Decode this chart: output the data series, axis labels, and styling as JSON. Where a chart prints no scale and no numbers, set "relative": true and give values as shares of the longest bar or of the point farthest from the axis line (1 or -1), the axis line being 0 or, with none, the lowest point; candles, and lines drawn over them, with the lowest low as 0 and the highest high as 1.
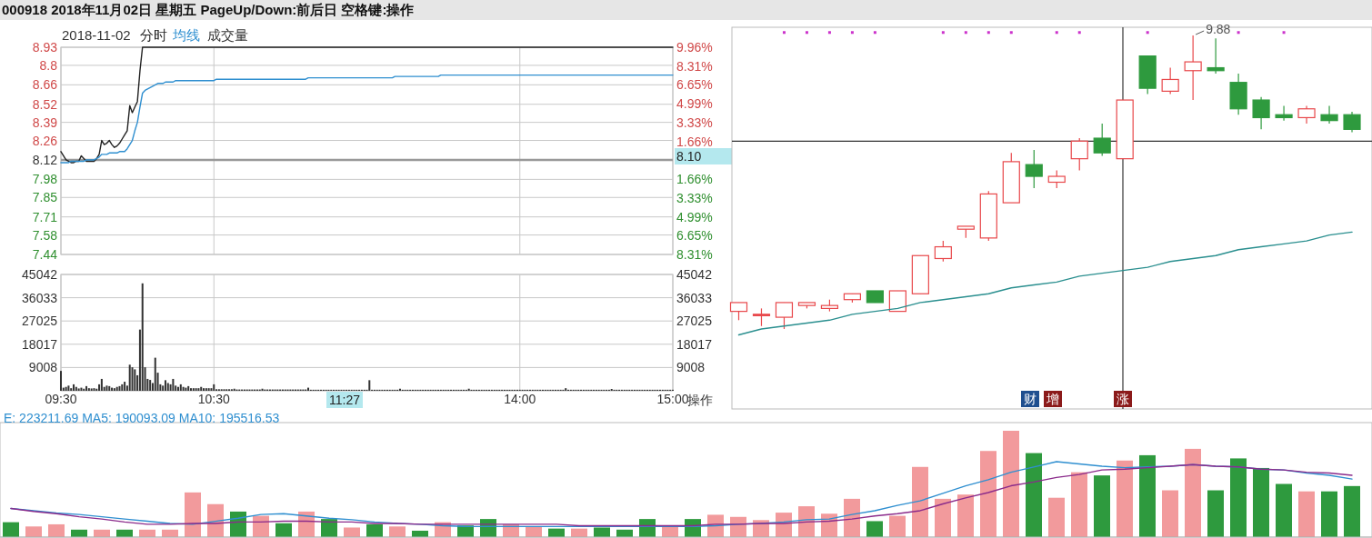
{
  "chart_data": [
    {
      "type": "line",
      "title": "000918 2018年11月02日 星期五 PageUp/Down:前后日 空格键:操作",
      "subtitle": "2018-11-02",
      "legend": "top left",
      "grid": true,
      "tick_labels": "y",
      "categories": [
        null,
        null,
        null,
        null,
        null,
        null,
        null,
        null,
        null,
        null,
        null,
        null,
        null,
        null,
        null,
        null,
        null,
        null,
        null,
        null,
        null,
        null,
        null,
        null,
        null,
        null,
        null,
        null,
        null,
        null,
        null,
        null,
        null,
        null,
        null,
        null,
        null,
        null,
        null,
        null,
        null,
        null,
        null,
        null,
        null,
        null,
        null,
        null,
        null,
        null,
        null,
        null,
        null,
        null,
        null,
        null,
        null,
        null,
        null,
        null,
        null,
        null,
        null,
        null,
        null,
        null,
        null,
        null,
        null,
        null,
        null,
        null,
        null,
        null,
        null,
        null,
        null,
        null,
        null,
        null,
        null,
        null,
        null,
        null,
        null,
        null,
        null,
        null,
        null,
        null,
        null,
        null,
        null,
        null,
        null,
        null,
        null,
        null,
        null,
        null,
        null,
        null,
        null,
        null,
        null,
        null,
        null,
        null,
        null,
        null,
        null,
        null,
        null,
        null,
        null,
        null,
        null,
        null,
        null,
        null,
        null,
        null,
        null,
        null,
        null,
        null,
        null,
        null,
        null,
        null,
        null,
        null,
        null,
        null,
        null,
        null,
        null,
        null,
        null,
        null,
        null,
        null,
        null,
        null,
        null,
        null,
        null,
        null,
        null,
        null,
        null,
        null,
        null,
        null,
        null,
        null,
        null,
        null,
        null,
        null,
        null,
        null,
        null,
        null,
        null,
        null,
        null,
        null,
        null,
        null,
        null,
        null,
        null,
        null,
        null,
        null,
        null,
        null,
        null,
        null,
        null,
        null,
        null,
        null,
        null,
        null,
        null,
        null,
        null,
        null,
        null,
        null,
        null,
        null,
        null,
        null,
        null,
        null,
        null,
        null,
        null,
        null,
        null,
        null,
        null,
        null,
        null,
        null,
        null,
        null,
        null,
        null,
        null,
        null,
        null,
        null,
        null,
        null,
        null,
        null,
        null,
        null,
        null,
        null,
        null,
        null,
        null,
        null,
        null,
        null,
        null,
        null,
        null,
        null,
        null,
        null,
        null,
        null,
        null,
        null,
        null
      ],
      "ylim": [
        7.44,
        8.93
      ],
      "yticks": [
        8.93,
        8.8,
        8.66,
        8.52,
        8.39,
        8.26,
        8.12,
        7.98,
        7.85,
        7.71,
        7.58,
        7.44
      ],
      "y2lim": [
        -8.31,
        9.96
      ],
      "y2ticks": [
        {
          "value": 9.96,
          "label": "9.96%"
        },
        {
          "value": 8.31,
          "label": "8.31%"
        },
        {
          "value": 6.65,
          "label": "6.65%"
        },
        {
          "value": 4.99,
          "label": "4.99%"
        },
        {
          "value": 3.33,
          "label": "3.33%"
        },
        {
          "value": 1.66,
          "label": "1.66%"
        },
        {
          "value": -1.66,
          "label": "1.66%"
        },
        {
          "value": -3.33,
          "label": "3.33%"
        },
        {
          "value": -4.99,
          "label": "4.99%"
        },
        {
          "value": -6.65,
          "label": "6.65%"
        },
        {
          "value": -8.31,
          "label": "8.31%"
        }
      ],
      "ref_lines": [
        {
          "axis": "y",
          "value": 8.12,
          "color": "#999999"
        }
      ],
      "annotations": [
        "8.10",
        "成交量"
      ],
      "series": [
        {
          "name": "分时",
          "color": "#222222",
          "values": [
            8.18,
            8.15,
            8.12,
            8.11,
            8.1,
            8.1,
            8.11,
            8.11,
            8.15,
            8.13,
            8.11,
            8.11,
            8.11,
            8.11,
            8.13,
            8.16,
            8.26,
            8.23,
            8.24,
            8.26,
            8.23,
            8.21,
            8.22,
            8.24,
            8.27,
            8.3,
            8.33,
            8.51,
            8.46,
            8.5,
            8.54,
            8.76,
            8.93,
            8.93,
            8.93,
            8.93,
            8.93,
            8.93,
            8.93,
            8.93,
            8.93,
            8.93,
            8.93,
            8.93,
            8.93,
            8.93,
            8.93,
            8.93,
            8.93,
            8.93,
            8.93,
            8.93,
            8.93,
            8.93,
            8.93,
            8.93,
            8.93,
            8.93,
            8.93,
            8.93,
            8.93,
            8.93,
            8.93,
            8.93,
            8.93,
            8.93,
            8.93,
            8.93,
            8.93,
            8.93,
            8.93,
            8.93,
            8.93,
            8.93,
            8.93,
            8.93,
            8.93,
            8.93,
            8.93,
            8.93,
            8.93,
            8.93,
            8.93,
            8.93,
            8.93,
            8.93,
            8.93,
            8.93,
            8.93,
            8.93,
            8.93,
            8.93,
            8.93,
            8.93,
            8.93,
            8.93,
            8.93,
            8.93,
            8.93,
            8.93,
            8.93,
            8.93,
            8.93,
            8.93,
            8.93,
            8.93,
            8.93,
            8.93,
            8.93,
            8.93,
            8.93,
            8.93,
            8.93,
            8.93,
            8.93,
            8.93,
            8.93,
            8.93,
            8.93,
            8.93,
            8.93,
            8.93,
            8.93,
            8.93,
            8.93,
            8.93,
            8.93,
            8.93,
            8.93,
            8.93,
            8.93,
            8.93,
            8.93,
            8.93,
            8.93,
            8.93,
            8.93,
            8.93,
            8.93,
            8.93,
            8.93,
            8.93,
            8.93,
            8.93,
            8.93,
            8.93,
            8.93,
            8.93,
            8.93,
            8.93,
            8.93,
            8.93,
            8.93,
            8.93,
            8.93,
            8.93,
            8.93,
            8.93,
            8.93,
            8.93,
            8.93,
            8.93,
            8.93,
            8.93,
            8.93,
            8.93,
            8.93,
            8.93,
            8.93,
            8.93,
            8.93,
            8.93,
            8.93,
            8.93,
            8.93,
            8.93,
            8.93,
            8.93,
            8.93,
            8.93,
            8.93,
            8.93,
            8.93,
            8.93,
            8.93,
            8.93,
            8.93,
            8.93,
            8.93,
            8.93,
            8.93,
            8.93,
            8.93,
            8.93,
            8.93,
            8.93,
            8.93,
            8.93,
            8.93,
            8.93,
            8.93,
            8.93,
            8.93,
            8.93,
            8.93,
            8.93,
            8.93,
            8.93,
            8.93,
            8.93,
            8.93,
            8.93,
            8.93,
            8.93,
            8.93,
            8.93,
            8.93,
            8.93,
            8.93,
            8.93,
            8.93,
            8.93,
            8.93,
            8.93,
            8.93,
            8.93,
            8.93,
            8.93,
            8.93,
            8.93,
            8.93,
            8.93,
            8.93,
            8.93,
            8.93,
            8.93,
            8.93,
            8.93,
            8.93,
            8.93,
            8.93
          ]
        },
        {
          "name": "均线",
          "color": "#2f8fd0",
          "values": [
            8.1,
            8.1,
            8.1,
            8.1,
            8.11,
            8.11,
            8.11,
            8.11,
            8.11,
            8.11,
            8.12,
            8.12,
            8.12,
            8.12,
            8.13,
            8.14,
            8.16,
            8.16,
            8.16,
            8.17,
            8.17,
            8.17,
            8.17,
            8.18,
            8.18,
            8.18,
            8.2,
            8.23,
            8.26,
            8.33,
            8.39,
            8.5,
            8.6,
            8.62,
            8.63,
            8.64,
            8.65,
            8.66,
            8.67,
            8.67,
            8.67,
            8.68,
            8.68,
            8.68,
            8.68,
            8.69,
            8.69,
            8.69,
            8.69,
            8.69,
            8.69,
            8.69,
            8.69,
            8.69,
            8.69,
            8.69,
            8.69,
            8.69,
            8.69,
            8.69,
            8.69,
            8.7,
            8.7,
            8.7,
            8.7,
            8.7,
            8.7,
            8.7,
            8.7,
            8.7,
            8.7,
            8.7,
            8.7,
            8.7,
            8.7,
            8.7,
            8.7,
            8.7,
            8.7,
            8.7,
            8.7,
            8.7,
            8.7,
            8.7,
            8.7,
            8.7,
            8.7,
            8.7,
            8.7,
            8.7,
            8.7,
            8.7,
            8.7,
            8.7,
            8.7,
            8.7,
            8.7,
            8.71,
            8.71,
            8.71,
            8.71,
            8.71,
            8.71,
            8.71,
            8.71,
            8.71,
            8.71,
            8.71,
            8.71,
            8.71,
            8.71,
            8.71,
            8.71,
            8.71,
            8.71,
            8.71,
            8.71,
            8.71,
            8.71,
            8.71,
            8.71,
            8.71,
            8.71,
            8.71,
            8.71,
            8.71,
            8.71,
            8.71,
            8.71,
            8.71,
            8.71,
            8.72,
            8.72,
            8.72,
            8.72,
            8.72,
            8.72,
            8.72,
            8.72,
            8.72,
            8.72,
            8.72,
            8.72,
            8.72,
            8.72,
            8.72,
            8.72,
            8.72,
            8.72,
            8.73,
            8.73,
            8.73,
            8.73,
            8.73,
            8.73,
            8.73,
            8.73,
            8.73,
            8.73,
            8.73,
            8.73,
            8.73,
            8.73,
            8.73,
            8.73,
            8.73,
            8.73,
            8.73,
            8.73,
            8.73,
            8.73,
            8.73,
            8.73,
            8.73,
            8.73,
            8.73,
            8.73,
            8.73,
            8.73,
            8.73,
            8.73,
            8.73,
            8.73,
            8.73,
            8.73,
            8.73,
            8.73,
            8.73,
            8.73,
            8.73,
            8.73,
            8.73,
            8.73,
            8.73,
            8.73,
            8.73,
            8.73,
            8.73,
            8.73,
            8.73,
            8.73,
            8.73,
            8.73,
            8.73,
            8.73,
            8.73,
            8.73,
            8.73,
            8.73,
            8.73,
            8.73,
            8.73,
            8.73,
            8.73,
            8.73,
            8.73,
            8.73,
            8.73,
            8.73,
            8.73,
            8.73,
            8.73,
            8.73,
            8.73,
            8.73,
            8.73,
            8.73,
            8.73,
            8.73,
            8.73,
            8.73,
            8.73,
            8.73,
            8.73,
            8.73,
            8.73,
            8.73,
            8.73,
            8.73,
            8.73,
            8.73
          ]
        }
      ]
    },
    {
      "type": "bar",
      "color": "#333333",
      "grid": true,
      "categories": [
        "09:30",
        null,
        null,
        null,
        null,
        null,
        null,
        null,
        null,
        null,
        null,
        null,
        null,
        null,
        null,
        null,
        null,
        null,
        null,
        null,
        null,
        null,
        null,
        null,
        null,
        null,
        null,
        null,
        null,
        null,
        null,
        null,
        null,
        null,
        null,
        null,
        null,
        null,
        null,
        null,
        null,
        null,
        null,
        null,
        null,
        null,
        null,
        null,
        null,
        null,
        null,
        null,
        null,
        null,
        null,
        null,
        null,
        null,
        null,
        null,
        "10:30",
        null,
        null,
        null,
        null,
        null,
        null,
        null,
        null,
        null,
        null,
        null,
        null,
        null,
        null,
        null,
        null,
        null,
        null,
        null,
        null,
        null,
        null,
        null,
        null,
        null,
        null,
        null,
        null,
        null,
        null,
        null,
        null,
        null,
        null,
        null,
        null,
        null,
        null,
        null,
        null,
        null,
        null,
        null,
        null,
        null,
        null,
        null,
        null,
        null,
        null,
        null,
        null,
        null,
        null,
        null,
        null,
        null,
        null,
        null,
        null,
        null,
        null,
        null,
        null,
        null,
        null,
        null,
        null,
        null,
        null,
        null,
        null,
        null,
        null,
        null,
        null,
        null,
        null,
        null,
        null,
        null,
        null,
        null,
        null,
        null,
        null,
        null,
        null,
        null,
        null,
        null,
        null,
        null,
        null,
        null,
        null,
        null,
        null,
        null,
        null,
        null,
        null,
        null,
        null,
        null,
        null,
        null,
        null,
        null,
        null,
        null,
        null,
        null,
        null,
        null,
        null,
        null,
        null,
        null,
        "14:00",
        null,
        null,
        null,
        null,
        null,
        null,
        null,
        null,
        null,
        null,
        null,
        null,
        null,
        null,
        null,
        null,
        null,
        null,
        null,
        null,
        null,
        null,
        null,
        null,
        null,
        null,
        null,
        null,
        null,
        null,
        null,
        null,
        null,
        null,
        null,
        null,
        null,
        null,
        null,
        null,
        null,
        null,
        null,
        null,
        null,
        null,
        null,
        null,
        null,
        null,
        null,
        null,
        null,
        null,
        null,
        null,
        null,
        null,
        null,
        "15:00"
      ],
      "ylim": [
        0,
        45042
      ],
      "yticks": [
        9008,
        18017,
        27025,
        36033,
        45042
      ],
      "y2lim": [
        0,
        45042
      ],
      "y2ticks": [
        9008,
        18017,
        27025,
        36033,
        45042
      ],
      "values": [
        7700,
        1200,
        1500,
        2000,
        1000,
        2500,
        1500,
        900,
        1200,
        800,
        1800,
        1000,
        900,
        1000,
        800,
        2500,
        4600,
        1500,
        2000,
        1800,
        1200,
        1000,
        1500,
        1800,
        2500,
        3500,
        2000,
        10100,
        9100,
        8300,
        6000,
        23700,
        41600,
        9100,
        4600,
        4200,
        3000,
        12800,
        7000,
        2500,
        2000,
        4100,
        3000,
        2500,
        4600,
        2000,
        1500,
        2500,
        1500,
        1200,
        1800,
        1000,
        1000,
        1000,
        1000,
        1500,
        1000,
        1000,
        1000,
        1000,
        2500,
        600,
        600,
        600,
        600,
        600,
        600,
        600,
        800,
        500,
        500,
        500,
        500,
        500,
        500,
        500,
        500,
        500,
        500,
        800,
        500,
        500,
        500,
        500,
        500,
        500,
        500,
        500,
        500,
        500,
        500,
        500,
        500,
        500,
        500,
        500,
        500,
        1200,
        400,
        400,
        400,
        400,
        400,
        400,
        400,
        400,
        400,
        400,
        400,
        400,
        400,
        400,
        400,
        400,
        400,
        400,
        400,
        400,
        400,
        400,
        400,
        4100,
        400,
        400,
        400,
        400,
        400,
        400,
        400,
        400,
        400,
        400,
        400,
        800,
        400,
        400,
        400,
        400,
        400,
        400,
        400,
        400,
        400,
        400,
        400,
        400,
        400,
        400,
        400,
        400,
        400,
        400,
        400,
        400,
        400,
        400,
        400,
        400,
        400,
        400,
        800,
        400,
        400,
        400,
        400,
        400,
        400,
        400,
        400,
        400,
        400,
        400,
        400,
        400,
        400,
        400,
        400,
        400,
        400,
        400,
        400,
        400,
        400,
        400,
        400,
        400,
        400,
        400,
        400,
        400,
        400,
        400,
        400,
        400,
        400,
        400,
        400,
        400,
        1000,
        400,
        400,
        400,
        400,
        400,
        400,
        400,
        400,
        400,
        400,
        400,
        400,
        400,
        400,
        400,
        400,
        400,
        700,
        400,
        400,
        400,
        400,
        400,
        400,
        400,
        400,
        400,
        400,
        400,
        400,
        400,
        400,
        400,
        400,
        400,
        400,
        400,
        400,
        400,
        400,
        400,
        400
      ],
      "annotations": [
        "11:27",
        "操作"
      ]
    },
    {
      "type": "candlestick",
      "relative": true,
      "categories": [
        null,
        null,
        null,
        null,
        null,
        null,
        null,
        null,
        null,
        null,
        null,
        null,
        null,
        null,
        null,
        null,
        null,
        null,
        null,
        null,
        null,
        null,
        null,
        null,
        null,
        null,
        null,
        null
      ],
      "ohlc": [
        [
          0.06,
          0.09,
          0.03,
          0.09
        ],
        [
          0.05,
          0.07,
          0.01,
          0.05
        ],
        [
          0.04,
          0.09,
          0.0,
          0.09
        ],
        [
          0.08,
          0.09,
          0.07,
          0.09
        ],
        [
          0.07,
          0.1,
          0.06,
          0.08
        ],
        [
          0.1,
          0.12,
          0.09,
          0.12
        ],
        [
          0.13,
          0.13,
          0.09,
          0.09
        ],
        [
          0.06,
          0.13,
          0.06,
          0.13
        ],
        [
          0.12,
          0.25,
          0.12,
          0.25
        ],
        [
          0.24,
          0.3,
          0.23,
          0.28
        ],
        [
          0.34,
          0.35,
          0.31,
          0.35
        ],
        [
          0.31,
          0.47,
          0.3,
          0.46
        ],
        [
          0.43,
          0.6,
          0.43,
          0.57
        ],
        [
          0.56,
          0.61,
          0.48,
          0.52
        ],
        [
          0.5,
          0.54,
          0.48,
          0.52
        ],
        [
          0.58,
          0.65,
          0.54,
          0.64
        ],
        [
          0.65,
          0.7,
          0.59,
          0.6
        ],
        [
          0.58,
          0.78,
          0.58,
          0.78
        ],
        [
          0.93,
          0.93,
          0.8,
          0.82
        ],
        [
          0.81,
          0.89,
          0.8,
          0.85
        ],
        [
          0.88,
          1.0,
          0.78,
          0.91
        ],
        [
          0.89,
          0.99,
          0.87,
          0.88
        ],
        [
          0.84,
          0.87,
          0.73,
          0.75
        ],
        [
          0.78,
          0.79,
          0.68,
          0.72
        ],
        [
          0.73,
          0.76,
          0.71,
          0.72
        ],
        [
          0.72,
          0.76,
          0.7,
          0.75
        ],
        [
          0.73,
          0.76,
          0.7,
          0.71
        ],
        [
          0.73,
          0.74,
          0.67,
          0.68
        ]
      ],
      "colors": [
        "#e8474a",
        "#e8474a",
        "#e8474a",
        "#e8474a",
        "#e8474a",
        "#e8474a",
        "#2e9a3e",
        "#e8474a",
        "#e8474a",
        "#e8474a",
        "#e8474a",
        "#e8474a",
        "#e8474a",
        "#2e9a3e",
        "#e8474a",
        "#e8474a",
        "#2e9a3e",
        "#e8474a",
        "#2e9a3e",
        "#e8474a",
        "#e8474a",
        "#2e9a3e",
        "#2e9a3e",
        "#2e9a3e",
        "#2e9a3e",
        "#e8474a",
        "#2e9a3e",
        "#2e9a3e"
      ],
      "series": [
        {
          "type": "scatter",
          "marker": "square",
          "color": "#cc33cc",
          "values": [
            null,
            null,
            1.01,
            1.01,
            1.01,
            1.01,
            1.01,
            null,
            null,
            1.01,
            1.01,
            1.01,
            1.01,
            null,
            1.01,
            1.01,
            null,
            null,
            1.01,
            null,
            null,
            null,
            1.01,
            null,
            1.01,
            null,
            null,
            null
          ]
        },
        {
          "type": "line",
          "color": "#2a8f8f",
          "values": [
            -0.02,
            0.0,
            0.01,
            0.02,
            0.03,
            0.05,
            0.06,
            0.07,
            0.09,
            0.1,
            0.11,
            0.12,
            0.14,
            0.15,
            0.16,
            0.18,
            0.19,
            0.2,
            0.21,
            0.23,
            0.24,
            0.25,
            0.27,
            0.28,
            0.29,
            0.3,
            0.32,
            0.33
          ]
        }
      ],
      "ref_lines": [
        {
          "axis": "y",
          "value": 0.64,
          "color": "#333333"
        }
      ],
      "annotations": [
        "9.88",
        "财",
        "增",
        "涨"
      ]
    },
    {
      "type": "bar",
      "relative": true,
      "categories": [
        null,
        null,
        null,
        null,
        null,
        null,
        null,
        null,
        null,
        null,
        null,
        null,
        null,
        null,
        null,
        null,
        null,
        null,
        null,
        null,
        null,
        null,
        null,
        null,
        null,
        null,
        null,
        null,
        null,
        null,
        null,
        null,
        null,
        null,
        null,
        null,
        null,
        null,
        null,
        null,
        null,
        null,
        null,
        null,
        null,
        null,
        null,
        null,
        null,
        null,
        null,
        null,
        null,
        null,
        null,
        null,
        null,
        null,
        null,
        null
      ],
      "values": [
        0.14,
        0.1,
        0.12,
        0.07,
        0.07,
        0.07,
        0.07,
        0.07,
        0.42,
        0.31,
        0.24,
        0.2,
        0.13,
        0.24,
        0.17,
        0.09,
        0.12,
        0.1,
        0.06,
        0.14,
        0.11,
        0.17,
        0.12,
        0.1,
        0.08,
        0.08,
        0.09,
        0.07,
        0.17,
        0.1,
        0.17,
        0.21,
        0.19,
        0.16,
        0.23,
        0.29,
        0.22,
        0.36,
        0.15,
        0.2,
        0.66,
        0.36,
        0.4,
        0.81,
        1.0,
        0.79,
        0.37,
        0.61,
        0.58,
        0.72,
        0.77,
        0.44,
        0.83,
        0.44,
        0.74,
        0.65,
        0.5,
        0.43,
        0.43,
        0.48
      ],
      "colors": [
        "#2e9a3e",
        "#e8474a",
        "#e8474a",
        "#2e9a3e",
        "#e8474a",
        "#2e9a3e",
        "#e8474a",
        "#e8474a",
        "#e8474a",
        "#e8474a",
        "#2e9a3e",
        "#e8474a",
        "#2e9a3e",
        "#e8474a",
        "#2e9a3e",
        "#e8474a",
        "#2e9a3e",
        "#e8474a",
        "#2e9a3e",
        "#e8474a",
        "#2e9a3e",
        "#2e9a3e",
        "#e8474a",
        "#e8474a",
        "#2e9a3e",
        "#e8474a",
        "#2e9a3e",
        "#2e9a3e",
        "#2e9a3e",
        "#e8474a",
        "#2e9a3e",
        "#e8474a",
        "#e8474a",
        "#e8474a",
        "#e8474a",
        "#e8474a",
        "#e8474a",
        "#e8474a",
        "#2e9a3e",
        "#e8474a",
        "#e8474a",
        "#e8474a",
        "#e8474a",
        "#e8474a",
        "#e8474a",
        "#2e9a3e",
        "#e8474a",
        "#e8474a",
        "#2e9a3e",
        "#e8474a",
        "#2e9a3e",
        "#e8474a",
        "#e8474a",
        "#2e9a3e",
        "#2e9a3e",
        "#2e9a3e",
        "#2e9a3e",
        "#e8474a",
        "#2e9a3e",
        "#2e9a3e"
      ],
      "annotations": [
        "E: 223211.69 MA5: 190093.09 MA10: 195516.53"
      ]
    },
    {
      "type": "line",
      "relative": true,
      "categories": [
        null,
        null,
        null,
        null,
        null,
        null,
        null,
        null,
        null,
        null,
        null,
        null,
        null,
        null,
        null,
        null,
        null,
        null,
        null,
        null,
        null,
        null,
        null,
        null,
        null,
        null,
        null,
        null,
        null,
        null,
        null,
        null,
        null,
        null,
        null,
        null,
        null,
        null,
        null,
        null,
        null,
        null,
        null,
        null,
        null,
        null,
        null,
        null,
        null,
        null,
        null,
        null,
        null,
        null,
        null,
        null,
        null,
        null,
        null,
        null
      ],
      "series": [
        {
          "color": "#2f8fd0",
          "values": [
            0.38,
            0.35,
            0.32,
            0.3,
            0.27,
            0.24,
            0.21,
            0.18,
            0.17,
            0.21,
            0.25,
            0.3,
            0.31,
            0.28,
            0.25,
            0.23,
            0.2,
            0.18,
            0.17,
            0.15,
            0.14,
            0.14,
            0.14,
            0.14,
            0.14,
            0.14,
            0.14,
            0.14,
            0.14,
            0.14,
            0.14,
            0.15,
            0.17,
            0.18,
            0.2,
            0.23,
            0.24,
            0.3,
            0.35,
            0.42,
            0.48,
            0.58,
            0.68,
            0.76,
            0.86,
            0.93,
            1.0,
            0.97,
            0.94,
            0.92,
            0.93,
            0.94,
            0.96,
            0.94,
            0.93,
            0.9,
            0.89,
            0.85,
            0.82,
            0.77
          ]
        },
        {
          "color": "#8b2b8b",
          "values": [
            0.38,
            0.34,
            0.31,
            0.27,
            0.24,
            0.2,
            0.17,
            0.17,
            0.18,
            0.18,
            0.2,
            0.2,
            0.21,
            0.21,
            0.2,
            0.2,
            0.18,
            0.18,
            0.17,
            0.17,
            0.17,
            0.17,
            0.17,
            0.17,
            0.17,
            0.15,
            0.15,
            0.15,
            0.15,
            0.15,
            0.15,
            0.17,
            0.17,
            0.18,
            0.18,
            0.2,
            0.21,
            0.24,
            0.28,
            0.31,
            0.35,
            0.44,
            0.52,
            0.59,
            0.68,
            0.73,
            0.79,
            0.83,
            0.89,
            0.9,
            0.92,
            0.94,
            0.96,
            0.94,
            0.93,
            0.9,
            0.89,
            0.86,
            0.85,
            0.82
          ]
        }
      ]
    }
  ]
}
